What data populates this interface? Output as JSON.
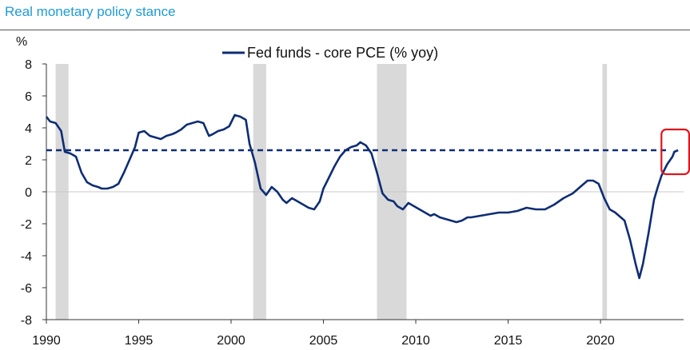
{
  "title": "Real monetary policy stance",
  "chart_data": {
    "type": "line",
    "title": "Real monetary policy stance",
    "ylabel": "%",
    "xlim": [
      1990,
      2024.5
    ],
    "ylim": [
      -8,
      8
    ],
    "yticks": [
      -8,
      -6,
      -4,
      -2,
      0,
      2,
      4,
      6,
      8
    ],
    "xticks": [
      1990,
      1995,
      2000,
      2005,
      2010,
      2015,
      2020
    ],
    "grid": false,
    "legend": "top-center",
    "recessions": [
      [
        1990.5,
        1991.2
      ],
      [
        2001.2,
        2001.9
      ],
      [
        2007.9,
        2009.5
      ],
      [
        2020.1,
        2020.35
      ]
    ],
    "reference_line": {
      "y": 2.6,
      "style": "dashed"
    },
    "highlight_box": {
      "x": [
        2023.3,
        2024.8
      ],
      "y": [
        1.1,
        3.9
      ]
    },
    "colors": {
      "series": "#0e2d74",
      "recession": "#d9d9d9",
      "highlight": "#e0141e",
      "title": "#1f9ad6"
    },
    "series": [
      {
        "name": "Fed funds - core PCE (% yoy)",
        "x": [
          1990.0,
          1990.2,
          1990.5,
          1990.8,
          1991.0,
          1991.3,
          1991.6,
          1991.9,
          1992.2,
          1992.5,
          1992.8,
          1993.0,
          1993.3,
          1993.6,
          1993.9,
          1994.2,
          1994.5,
          1994.8,
          1995.0,
          1995.3,
          1995.6,
          1995.9,
          1996.2,
          1996.5,
          1996.8,
          1997.0,
          1997.3,
          1997.6,
          1997.9,
          1998.2,
          1998.5,
          1998.8,
          1999.0,
          1999.3,
          1999.6,
          1999.9,
          2000.2,
          2000.5,
          2000.8,
          2001.0,
          2001.3,
          2001.6,
          2001.9,
          2002.2,
          2002.5,
          2002.8,
          2003.0,
          2003.3,
          2003.6,
          2003.9,
          2004.2,
          2004.5,
          2004.8,
          2005.0,
          2005.3,
          2005.6,
          2005.9,
          2006.2,
          2006.5,
          2006.8,
          2007.0,
          2007.3,
          2007.6,
          2007.9,
          2008.2,
          2008.5,
          2008.8,
          2009.0,
          2009.3,
          2009.6,
          2009.9,
          2010.2,
          2010.5,
          2010.8,
          2011.0,
          2011.3,
          2011.6,
          2011.9,
          2012.2,
          2012.5,
          2012.8,
          2013.0,
          2013.5,
          2014.0,
          2014.5,
          2015.0,
          2015.5,
          2016.0,
          2016.5,
          2017.0,
          2017.5,
          2018.0,
          2018.5,
          2019.0,
          2019.3,
          2019.6,
          2019.9,
          2020.2,
          2020.5,
          2020.8,
          2021.0,
          2021.3,
          2021.6,
          2021.9,
          2022.1,
          2022.3,
          2022.6,
          2022.9,
          2023.1,
          2023.3,
          2023.6,
          2023.9,
          2024.0,
          2024.2
        ],
        "values": [
          4.7,
          4.4,
          4.3,
          3.8,
          2.5,
          2.4,
          2.2,
          1.2,
          0.6,
          0.4,
          0.3,
          0.2,
          0.2,
          0.3,
          0.5,
          1.2,
          2.0,
          2.8,
          3.7,
          3.8,
          3.5,
          3.4,
          3.3,
          3.5,
          3.6,
          3.7,
          3.9,
          4.2,
          4.3,
          4.4,
          4.3,
          3.5,
          3.6,
          3.8,
          3.9,
          4.1,
          4.8,
          4.7,
          4.5,
          3.0,
          1.8,
          0.2,
          -0.2,
          0.3,
          0.0,
          -0.5,
          -0.7,
          -0.4,
          -0.6,
          -0.8,
          -1.0,
          -1.1,
          -0.6,
          0.2,
          0.9,
          1.6,
          2.2,
          2.6,
          2.8,
          2.9,
          3.1,
          2.9,
          2.4,
          1.2,
          -0.1,
          -0.5,
          -0.6,
          -0.9,
          -1.1,
          -0.7,
          -0.9,
          -1.1,
          -1.3,
          -1.5,
          -1.4,
          -1.6,
          -1.7,
          -1.8,
          -1.9,
          -1.8,
          -1.6,
          -1.6,
          -1.5,
          -1.4,
          -1.3,
          -1.3,
          -1.2,
          -1.0,
          -1.1,
          -1.1,
          -0.8,
          -0.4,
          -0.1,
          0.4,
          0.7,
          0.7,
          0.5,
          -0.4,
          -1.1,
          -1.3,
          -1.5,
          -1.8,
          -3.0,
          -4.5,
          -5.4,
          -4.5,
          -2.6,
          -0.5,
          0.3,
          1.0,
          1.7,
          2.2,
          2.5,
          2.6
        ]
      }
    ]
  }
}
